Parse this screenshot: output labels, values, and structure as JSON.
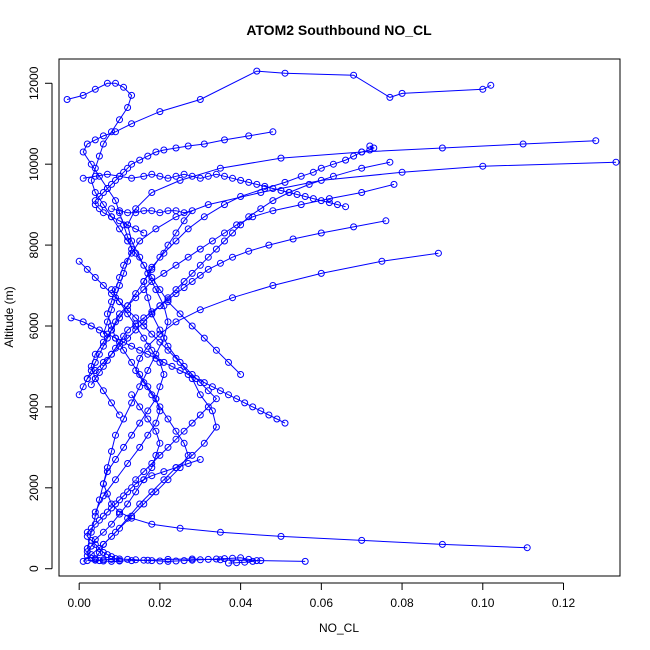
{
  "chart_data": {
    "type": "line",
    "title": "ATOM2 Southbound NO_CL",
    "xlabel": "NO_CL",
    "ylabel": "Altitude (m)",
    "xlim": [
      -0.005,
      0.134
    ],
    "ylim": [
      -180,
      12600
    ],
    "x_ticks": [
      0.0,
      0.02,
      0.04,
      0.06,
      0.08,
      0.1,
      0.12
    ],
    "x_tick_labels": [
      "0.00",
      "0.02",
      "0.04",
      "0.06",
      "0.08",
      "0.10",
      "0.12"
    ],
    "y_ticks": [
      0,
      2000,
      4000,
      6000,
      8000,
      10000,
      12000
    ],
    "y_tick_labels": [
      "0",
      "2000",
      "4000",
      "6000",
      "8000",
      "10000",
      "12000"
    ],
    "grid": false,
    "marker": "open-circle",
    "color": "#0000ff",
    "series": [
      {
        "x": [
          0.001,
          0.003,
          0.006,
          0.009,
          0.012,
          0.015,
          0.018,
          0.021,
          0.024,
          0.028,
          0.031,
          0.034,
          0.033,
          0.03,
          0.028,
          0.025,
          0.022,
          0.02,
          0.018,
          0.017,
          0.016,
          0.018,
          0.021,
          0.024,
          0.027,
          0.031,
          0.036,
          0.04,
          0.046,
          0.051,
          0.055,
          0.058,
          0.06,
          0.063,
          0.066,
          0.068,
          0.07,
          0.072,
          0.073,
          0.072
        ],
        "y": [
          180,
          350,
          600,
          900,
          1250,
          1600,
          1900,
          2200,
          2500,
          2800,
          3100,
          3500,
          3900,
          4300,
          4700,
          5100,
          5500,
          5900,
          6300,
          6700,
          7100,
          7450,
          7800,
          8100,
          8400,
          8700,
          9000,
          9200,
          9400,
          9550,
          9700,
          9800,
          9900,
          10000,
          10100,
          10200,
          10300,
          10350,
          10400,
          10450
        ]
      },
      {
        "x": [
          0.128,
          0.11,
          0.09,
          0.07,
          0.05,
          0.035,
          0.025,
          0.018,
          0.014,
          0.012,
          0.013,
          0.015,
          0.017,
          0.019,
          0.021,
          0.022,
          0.021,
          0.019,
          0.017,
          0.015,
          0.013,
          0.011,
          0.009,
          0.008,
          0.007,
          0.006,
          0.005,
          0.004,
          0.003,
          0.002
        ],
        "y": [
          10580,
          10500,
          10400,
          10300,
          10150,
          9900,
          9600,
          9300,
          8900,
          8500,
          8100,
          7700,
          7300,
          6900,
          6500,
          6100,
          5700,
          5300,
          4900,
          4500,
          4100,
          3700,
          3300,
          2900,
          2500,
          2100,
          1700,
          1300,
          900,
          500
        ]
      },
      {
        "x": [
          0.133,
          0.1,
          0.08,
          0.06,
          0.045,
          0.032,
          0.024,
          0.019,
          0.015,
          0.013,
          0.011,
          0.01,
          0.009,
          0.008,
          0.007,
          0.008,
          0.009,
          0.011,
          0.013,
          0.015,
          0.017,
          0.019,
          0.02,
          0.019,
          0.017,
          0.015,
          0.012,
          0.009,
          0.006,
          0.004
        ],
        "y": [
          10050,
          9950,
          9800,
          9600,
          9300,
          9000,
          8700,
          8400,
          8100,
          7800,
          7500,
          7200,
          6900,
          6600,
          6300,
          6000,
          5700,
          5400,
          5100,
          4800,
          4500,
          4200,
          3900,
          3600,
          3300,
          3000,
          2600,
          2200,
          1800,
          1400
        ]
      },
      {
        "x": [
          0.089,
          0.075,
          0.06,
          0.048,
          0.038,
          0.03,
          0.024,
          0.02,
          0.017,
          0.015,
          0.014,
          0.016,
          0.018,
          0.02,
          0.022,
          0.024,
          0.026,
          0.027,
          0.025,
          0.022,
          0.019,
          0.016,
          0.013,
          0.01,
          0.008,
          0.006,
          0.005,
          0.004
        ],
        "y": [
          7800,
          7600,
          7300,
          7000,
          6700,
          6400,
          6100,
          5800,
          5500,
          5200,
          4900,
          4600,
          4300,
          4000,
          3700,
          3400,
          3100,
          2800,
          2500,
          2200,
          1900,
          1600,
          1300,
          1000,
          800,
          600,
          400,
          250
        ]
      },
      {
        "x": [
          0.111,
          0.09,
          0.07,
          0.05,
          0.035,
          0.025,
          0.018,
          0.013,
          0.01,
          0.008,
          0.007,
          0.006,
          0.007,
          0.009,
          0.011,
          0.013,
          0.015,
          0.017,
          0.019,
          0.02,
          0.021,
          0.02,
          0.018,
          0.016,
          0.014,
          0.012,
          0.01,
          0.008
        ],
        "y": [
          520,
          600,
          700,
          800,
          900,
          1000,
          1100,
          1250,
          1400,
          1600,
          1850,
          2100,
          2400,
          2700,
          3000,
          3300,
          3600,
          3900,
          4200,
          4500,
          4800,
          5100,
          5400,
          5700,
          6000,
          6300,
          6600,
          6900
        ]
      },
      {
        "x": [
          0.056,
          0.045,
          0.035,
          0.028,
          0.022,
          0.017,
          0.013,
          0.01,
          0.008,
          0.006,
          0.005,
          0.004,
          0.003,
          0.002,
          0.002,
          0.003,
          0.004,
          0.006,
          0.008,
          0.01,
          0.012,
          0.014,
          0.016,
          0.018,
          0.019,
          0.02,
          0.019,
          0.017,
          0.015,
          0.013
        ],
        "y": [
          180,
          200,
          220,
          240,
          230,
          210,
          200,
          190,
          180,
          190,
          200,
          220,
          260,
          320,
          420,
          560,
          720,
          900,
          1100,
          1350,
          1600,
          1900,
          2200,
          2500,
          2800,
          3100,
          3400,
          3700,
          4000,
          4300
        ]
      },
      {
        "x": [
          0.102,
          0.1,
          0.08,
          0.077,
          0.068,
          0.051,
          0.044,
          0.03,
          0.02,
          0.013,
          0.009,
          0.006,
          0.004,
          0.002,
          0.001,
          0.003,
          0.005,
          0.007,
          0.009,
          0.01,
          0.011,
          0.012,
          0.013,
          0.012,
          0.011,
          0.01,
          0.009,
          0.008,
          0.007,
          0.006
        ],
        "y": [
          11950,
          11850,
          11750,
          11650,
          12200,
          12250,
          12300,
          11600,
          11300,
          11000,
          10800,
          10700,
          10600,
          10500,
          10300,
          10000,
          9700,
          9400,
          9100,
          8800,
          8500,
          8200,
          7900,
          7600,
          7300,
          7000,
          6700,
          6400,
          6100,
          5800
        ]
      },
      {
        "x": [
          -0.003,
          0.001,
          0.004,
          0.007,
          0.009,
          0.011,
          0.013,
          0.012,
          0.01,
          0.008,
          0.006,
          0.005,
          0.004,
          0.003,
          0.004,
          0.006,
          0.008,
          0.01,
          0.012,
          0.014,
          0.016,
          0.018,
          0.02,
          0.022,
          0.025,
          0.028,
          0.031,
          0.034,
          0.037,
          0.04
        ],
        "y": [
          11600,
          11700,
          11850,
          12000,
          12000,
          11900,
          11700,
          11400,
          11100,
          10800,
          10500,
          10200,
          9900,
          9600,
          9300,
          9000,
          8700,
          8400,
          8100,
          7800,
          7500,
          7200,
          6900,
          6600,
          6300,
          6000,
          5700,
          5400,
          5100,
          4800
        ]
      },
      {
        "x": [
          0.078,
          0.07,
          0.062,
          0.055,
          0.048,
          0.043,
          0.039,
          0.036,
          0.033,
          0.03,
          0.027,
          0.024,
          0.021,
          0.018,
          0.016,
          0.014,
          0.012,
          0.01,
          0.009,
          0.008,
          0.007,
          0.006,
          0.005,
          0.004,
          0.003,
          0.002,
          0.001,
          0.0
        ],
        "y": [
          9500,
          9300,
          9150,
          9000,
          8850,
          8700,
          8500,
          8300,
          8100,
          7900,
          7700,
          7500,
          7300,
          7100,
          6900,
          6700,
          6500,
          6300,
          6100,
          5900,
          5700,
          5500,
          5300,
          5100,
          4900,
          4700,
          4500,
          4300
        ]
      },
      {
        "x": [
          0.077,
          0.07,
          0.063,
          0.057,
          0.052,
          0.048,
          0.045,
          0.042,
          0.04,
          0.038,
          0.036,
          0.034,
          0.032,
          0.03,
          0.028,
          0.026,
          0.024,
          0.022,
          0.02,
          0.018,
          0.016,
          0.014,
          0.012,
          0.01,
          0.008,
          0.006,
          0.004,
          0.002
        ],
        "y": [
          10050,
          9900,
          9700,
          9500,
          9300,
          9100,
          8900,
          8700,
          8500,
          8300,
          8100,
          7900,
          7700,
          7500,
          7300,
          7100,
          6900,
          6700,
          6500,
          6300,
          6100,
          5900,
          5700,
          5500,
          5300,
          5100,
          4900,
          4700
        ]
      },
      {
        "x": [
          0.076,
          0.068,
          0.06,
          0.053,
          0.047,
          0.042,
          0.038,
          0.035,
          0.032,
          0.03,
          0.028,
          0.026,
          0.024,
          0.022,
          0.02,
          0.018,
          0.016,
          0.014,
          0.012,
          0.011,
          0.01,
          0.009,
          0.008,
          0.007,
          0.006,
          0.005,
          0.004,
          0.003
        ],
        "y": [
          8600,
          8450,
          8300,
          8150,
          8000,
          7850,
          7700,
          7550,
          7400,
          7250,
          7100,
          6950,
          6800,
          6650,
          6500,
          6350,
          6200,
          6050,
          5900,
          5750,
          5600,
          5450,
          5300,
          5150,
          5000,
          4850,
          4700,
          4550
        ]
      },
      {
        "x": [
          0.03,
          0.027,
          0.024,
          0.021,
          0.018,
          0.016,
          0.014,
          0.013,
          0.012,
          0.011,
          0.01,
          0.009,
          0.008,
          0.007,
          0.006,
          0.005,
          0.004,
          0.003,
          0.002,
          0.002,
          0.003,
          0.004,
          0.005,
          0.006,
          0.007,
          0.008,
          0.009,
          0.01
        ],
        "y": [
          2700,
          2600,
          2500,
          2400,
          2300,
          2200,
          2100,
          2000,
          1900,
          1800,
          1700,
          1600,
          1500,
          1400,
          1300,
          1200,
          1100,
          1000,
          900,
          800,
          700,
          600,
          500,
          400,
          350,
          300,
          250,
          200
        ]
      },
      {
        "x": [
          0.048,
          0.042,
          0.036,
          0.031,
          0.027,
          0.024,
          0.021,
          0.019,
          0.017,
          0.015,
          0.013,
          0.012,
          0.011,
          0.01,
          0.009,
          0.008,
          0.007,
          0.006,
          0.005,
          0.004,
          0.004,
          0.005,
          0.006,
          0.008,
          0.01,
          0.012,
          0.014,
          0.016
        ],
        "y": [
          10800,
          10700,
          10600,
          10500,
          10450,
          10400,
          10350,
          10300,
          10200,
          10100,
          10000,
          9900,
          9800,
          9700,
          9600,
          9500,
          9400,
          9300,
          9200,
          9100,
          9000,
          8900,
          8800,
          8700,
          8600,
          8500,
          8400,
          8300
        ]
      },
      {
        "x": [
          0.008,
          0.01,
          0.012,
          0.014,
          0.016,
          0.018,
          0.02,
          0.022,
          0.024,
          0.026,
          0.028,
          0.026,
          0.024,
          0.022,
          0.02,
          0.018,
          0.016,
          0.014,
          0.012,
          0.01,
          0.008,
          0.006,
          0.004,
          0.003,
          0.004,
          0.006,
          0.008,
          0.01
        ],
        "y": [
          8900,
          8850,
          8800,
          8800,
          8850,
          8850,
          8800,
          8850,
          8850,
          8800,
          8850,
          8600,
          8300,
          8000,
          7700,
          7400,
          7100,
          6800,
          6500,
          6200,
          5900,
          5600,
          5300,
          5000,
          4700,
          4400,
          4100,
          3800
        ]
      },
      {
        "x": [
          0.0,
          0.002,
          0.004,
          0.006,
          0.008,
          0.01,
          0.012,
          0.014,
          0.016,
          0.018,
          0.02,
          0.022,
          0.024,
          0.026,
          0.028,
          0.03,
          0.032,
          0.034,
          0.032,
          0.03,
          0.028,
          0.026,
          0.024,
          0.022,
          0.02,
          0.018,
          0.016,
          0.014
        ],
        "y": [
          7600,
          7400,
          7200,
          7000,
          6800,
          6600,
          6400,
          6200,
          6000,
          5800,
          5600,
          5400,
          5200,
          5000,
          4800,
          4600,
          4400,
          4200,
          4000,
          3800,
          3600,
          3400,
          3200,
          3000,
          2800,
          2600,
          2400,
          2200
        ]
      },
      {
        "x": [
          -0.002,
          0.001,
          0.003,
          0.005,
          0.007,
          0.009,
          0.011,
          0.013,
          0.015,
          0.017,
          0.019,
          0.021,
          0.023,
          0.025,
          0.027,
          0.029,
          0.031,
          0.033,
          0.035,
          0.037,
          0.039,
          0.041,
          0.043,
          0.045,
          0.047,
          0.049,
          0.051
        ],
        "y": [
          6200,
          6100,
          6000,
          5900,
          5800,
          5700,
          5600,
          5500,
          5400,
          5300,
          5200,
          5100,
          5000,
          4900,
          4800,
          4700,
          4600,
          4500,
          4400,
          4300,
          4200,
          4100,
          4000,
          3900,
          3800,
          3700,
          3600
        ]
      },
      {
        "x": [
          0.002,
          0.004,
          0.006,
          0.008,
          0.01,
          0.012,
          0.014,
          0.016,
          0.018,
          0.02,
          0.022,
          0.024,
          0.026,
          0.028,
          0.03,
          0.032,
          0.034,
          0.036,
          0.038,
          0.04,
          0.042,
          0.044,
          0.043,
          0.041,
          0.039,
          0.037
        ],
        "y": [
          200,
          210,
          220,
          230,
          240,
          230,
          220,
          210,
          200,
          190,
          180,
          190,
          200,
          210,
          220,
          230,
          240,
          250,
          260,
          270,
          230,
          200,
          180,
          160,
          150,
          140
        ]
      },
      {
        "x": [
          0.001,
          0.004,
          0.007,
          0.01,
          0.013,
          0.016,
          0.018,
          0.02,
          0.022,
          0.024,
          0.026,
          0.028,
          0.03,
          0.032,
          0.034,
          0.036,
          0.038,
          0.04,
          0.042,
          0.044,
          0.046,
          0.048,
          0.05,
          0.052,
          0.054,
          0.056,
          0.058,
          0.06,
          0.062,
          0.064,
          0.066
        ],
        "y": [
          9650,
          9700,
          9750,
          9700,
          9650,
          9700,
          9750,
          9700,
          9650,
          9700,
          9750,
          9700,
          9650,
          9700,
          9750,
          9700,
          9650,
          9600,
          9550,
          9500,
          9450,
          9400,
          9350,
          9300,
          9250,
          9200,
          9150,
          9100,
          9050,
          9000,
          8950
        ]
      }
    ]
  }
}
